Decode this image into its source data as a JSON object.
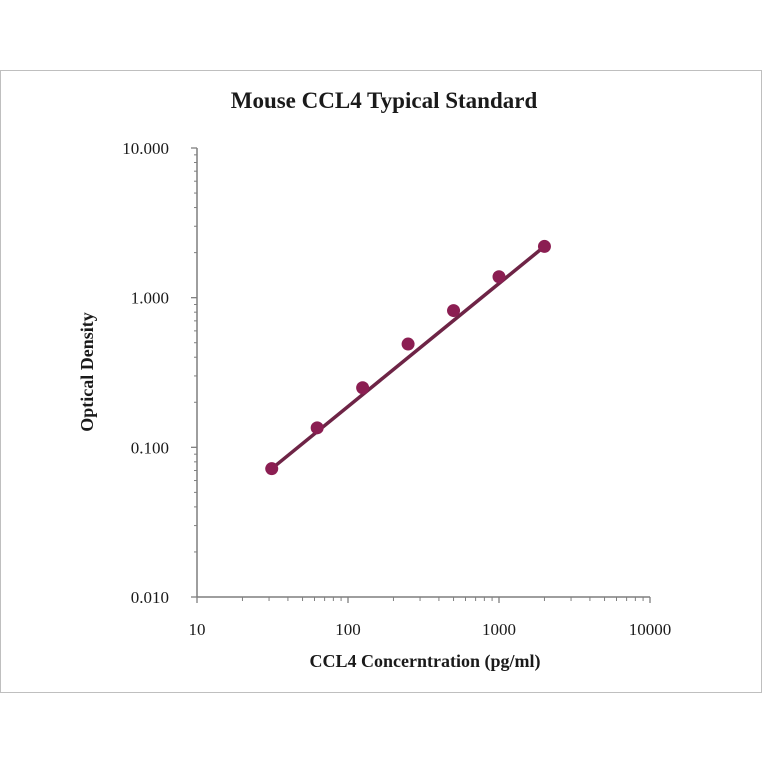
{
  "chart_data": {
    "type": "scatter",
    "title": "Mouse CCL4 Typical Standard",
    "xlabel": "CCL4 Concerntration (pg/ml)",
    "ylabel": "Optical Density",
    "x_scale": "log",
    "y_scale": "log",
    "xlim": [
      10,
      10000
    ],
    "ylim": [
      0.01,
      10
    ],
    "x_ticks": [
      "10",
      "100",
      "1000",
      "10000"
    ],
    "y_ticks": [
      "10.000",
      "1.000",
      "0.100",
      "0.010"
    ],
    "grid": false,
    "legend": "none",
    "colors": {
      "marker": "#8b1e52",
      "line": "#6e2446",
      "axis": "#7f7f7f"
    },
    "series": [
      {
        "x": [
          31.25,
          62.5,
          125,
          250,
          500,
          1000,
          2000
        ],
        "y": [
          0.072,
          0.135,
          0.25,
          0.49,
          0.82,
          1.38,
          2.2
        ]
      }
    ],
    "trendline": {
      "x": [
        31.25,
        2000
      ],
      "y": [
        0.072,
        2.2
      ]
    }
  }
}
